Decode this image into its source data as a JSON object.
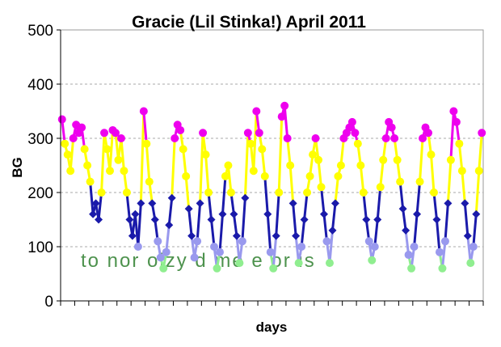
{
  "chart_data": {
    "type": "line",
    "title": "Gracie (Lil Stinka!) April 2011",
    "xlabel": "days",
    "ylabel": "BG",
    "ylim": [
      0,
      500
    ],
    "yticks": [
      0,
      100,
      200,
      300,
      400,
      500
    ],
    "xlim": [
      0,
      30
    ],
    "grid": true,
    "watermark_text": "to  nor oizy d  me        e  or  is",
    "band_colors": {
      "below_80": "#90ee90",
      "80_to_120": "#9999ee",
      "120_to_200": "#1a1aaa",
      "200_to_300": "#ffff00",
      "above_300": "#ee00ee"
    },
    "series": [
      {
        "values": [
          [
            0.1,
            335
          ],
          [
            0.3,
            290
          ],
          [
            0.5,
            270
          ],
          [
            0.7,
            240
          ],
          [
            0.9,
            300
          ],
          [
            1.1,
            325
          ],
          [
            1.3,
            310
          ],
          [
            1.5,
            320
          ],
          [
            1.7,
            280
          ],
          [
            1.9,
            250
          ],
          [
            2.1,
            220
          ],
          [
            2.3,
            160
          ],
          [
            2.5,
            180
          ],
          [
            2.7,
            150
          ],
          [
            2.9,
            200
          ],
          [
            3.1,
            310
          ],
          [
            3.3,
            280
          ],
          [
            3.5,
            240
          ],
          [
            3.7,
            315
          ],
          [
            3.9,
            310
          ],
          [
            4.1,
            260
          ],
          [
            4.3,
            300
          ],
          [
            4.5,
            240
          ],
          [
            4.7,
            200
          ],
          [
            4.9,
            150
          ],
          [
            5.1,
            120
          ],
          [
            5.3,
            160
          ],
          [
            5.5,
            100
          ],
          [
            5.7,
            180
          ],
          [
            5.9,
            350
          ],
          [
            6.1,
            290
          ],
          [
            6.3,
            220
          ],
          [
            6.5,
            180
          ],
          [
            6.7,
            150
          ],
          [
            6.9,
            110
          ],
          [
            7.1,
            80
          ],
          [
            7.3,
            60
          ],
          [
            7.5,
            90
          ],
          [
            7.7,
            140
          ],
          [
            7.9,
            190
          ],
          [
            8.1,
            300
          ],
          [
            8.3,
            325
          ],
          [
            8.5,
            315
          ],
          [
            8.7,
            280
          ],
          [
            8.9,
            230
          ],
          [
            9.1,
            170
          ],
          [
            9.3,
            120
          ],
          [
            9.5,
            80
          ],
          [
            9.7,
            110
          ],
          [
            9.9,
            180
          ],
          [
            10.1,
            310
          ],
          [
            10.3,
            270
          ],
          [
            10.5,
            200
          ],
          [
            10.7,
            150
          ],
          [
            10.9,
            100
          ],
          [
            11.1,
            60
          ],
          [
            11.3,
            90
          ],
          [
            11.5,
            160
          ],
          [
            11.7,
            230
          ],
          [
            11.9,
            250
          ],
          [
            12.1,
            200
          ],
          [
            12.3,
            160
          ],
          [
            12.5,
            120
          ],
          [
            12.7,
            70
          ],
          [
            12.9,
            110
          ],
          [
            13.1,
            190
          ],
          [
            13.3,
            310
          ],
          [
            13.5,
            290
          ],
          [
            13.7,
            240
          ],
          [
            13.9,
            350
          ],
          [
            14.1,
            310
          ],
          [
            14.3,
            280
          ],
          [
            14.5,
            230
          ],
          [
            14.7,
            160
          ],
          [
            14.9,
            90
          ],
          [
            15.1,
            60
          ],
          [
            15.3,
            120
          ],
          [
            15.5,
            200
          ],
          [
            15.7,
            340
          ],
          [
            15.9,
            360
          ],
          [
            16.1,
            300
          ],
          [
            16.3,
            250
          ],
          [
            16.5,
            180
          ],
          [
            16.7,
            120
          ],
          [
            16.9,
            70
          ],
          [
            17.1,
            100
          ],
          [
            17.3,
            150
          ],
          [
            17.5,
            200
          ],
          [
            17.7,
            230
          ],
          [
            17.9,
            270
          ],
          [
            18.1,
            300
          ],
          [
            18.3,
            260
          ],
          [
            18.5,
            210
          ],
          [
            18.7,
            160
          ],
          [
            18.9,
            110
          ],
          [
            19.1,
            70
          ],
          [
            19.3,
            130
          ],
          [
            19.5,
            180
          ],
          [
            19.7,
            230
          ],
          [
            19.9,
            250
          ],
          [
            20.1,
            300
          ],
          [
            20.3,
            310
          ],
          [
            20.5,
            320
          ],
          [
            20.7,
            330
          ],
          [
            20.9,
            310
          ],
          [
            21.1,
            290
          ],
          [
            21.3,
            250
          ],
          [
            21.5,
            200
          ],
          [
            21.7,
            150
          ],
          [
            21.9,
            110
          ],
          [
            22.1,
            75
          ],
          [
            22.3,
            100
          ],
          [
            22.5,
            150
          ],
          [
            22.7,
            210
          ],
          [
            22.9,
            260
          ],
          [
            23.1,
            300
          ],
          [
            23.3,
            330
          ],
          [
            23.5,
            320
          ],
          [
            23.7,
            300
          ],
          [
            23.9,
            260
          ],
          [
            24.1,
            220
          ],
          [
            24.3,
            170
          ],
          [
            24.5,
            130
          ],
          [
            24.7,
            85
          ],
          [
            24.9,
            60
          ],
          [
            25.1,
            100
          ],
          [
            25.3,
            160
          ],
          [
            25.5,
            220
          ],
          [
            25.7,
            300
          ],
          [
            25.9,
            320
          ],
          [
            26.1,
            310
          ],
          [
            26.3,
            270
          ],
          [
            26.5,
            200
          ],
          [
            26.7,
            150
          ],
          [
            26.9,
            90
          ],
          [
            27.1,
            60
          ],
          [
            27.3,
            110
          ],
          [
            27.5,
            180
          ],
          [
            27.7,
            260
          ],
          [
            27.9,
            350
          ],
          [
            28.1,
            330
          ],
          [
            28.3,
            290
          ],
          [
            28.5,
            240
          ],
          [
            28.7,
            180
          ],
          [
            28.9,
            120
          ],
          [
            29.1,
            70
          ],
          [
            29.3,
            100
          ],
          [
            29.5,
            160
          ],
          [
            29.7,
            240
          ],
          [
            29.9,
            310
          ]
        ]
      }
    ]
  }
}
